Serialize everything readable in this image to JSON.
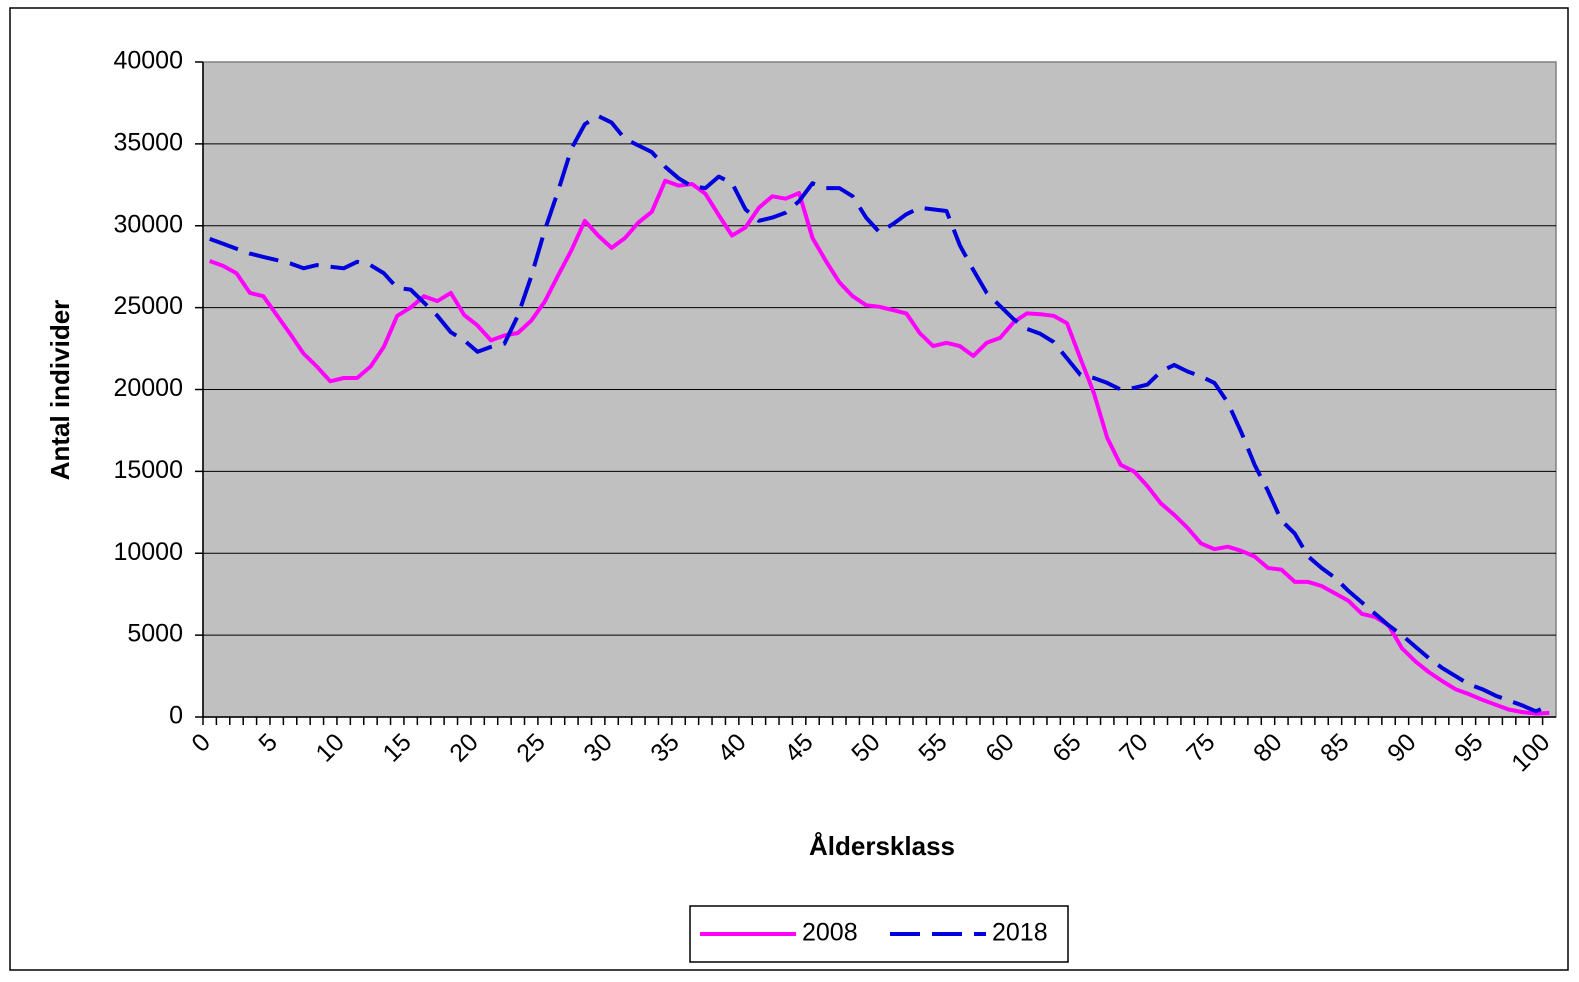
{
  "chart_data": {
    "type": "line",
    "x_label": "Åldersklass",
    "y_label": "Antal individer",
    "categories": [
      "0",
      null,
      null,
      null,
      null,
      "5",
      null,
      null,
      null,
      null,
      "10",
      null,
      null,
      null,
      null,
      "15",
      null,
      null,
      null,
      null,
      "20",
      null,
      null,
      null,
      null,
      "25",
      null,
      null,
      null,
      null,
      "30",
      null,
      null,
      null,
      null,
      "35",
      null,
      null,
      null,
      null,
      "40",
      null,
      null,
      null,
      null,
      "45",
      null,
      null,
      null,
      null,
      "50",
      null,
      null,
      null,
      null,
      "55",
      null,
      null,
      null,
      null,
      "60",
      null,
      null,
      null,
      null,
      "65",
      null,
      null,
      null,
      null,
      "70",
      null,
      null,
      null,
      null,
      "75",
      null,
      null,
      null,
      null,
      "80",
      null,
      null,
      null,
      null,
      "85",
      null,
      null,
      null,
      null,
      "90",
      null,
      null,
      null,
      null,
      "95",
      null,
      null,
      null,
      null,
      "100"
    ],
    "series": [
      {
        "name": "2008",
        "color": "#ff00ff",
        "dashed": false,
        "values": [
          27850,
          27550,
          27100,
          25900,
          25700,
          24550,
          23400,
          22200,
          21400,
          20500,
          20700,
          20700,
          21400,
          22600,
          24500,
          25000,
          25700,
          25400,
          25900,
          24550,
          23900,
          23000,
          23300,
          23450,
          24200,
          25350,
          26950,
          28500,
          30300,
          29400,
          28650,
          29250,
          30200,
          30850,
          32750,
          32450,
          32550,
          31950,
          30650,
          29400,
          29900,
          31100,
          31800,
          31650,
          32000,
          29250,
          27850,
          26550,
          25700,
          25150,
          25050,
          24850,
          24650,
          23450,
          22650,
          22850,
          22650,
          22050,
          22850,
          23150,
          24100,
          24650,
          24600,
          24500,
          24050,
          21900,
          19800,
          17050,
          15400,
          15000,
          14100,
          13050,
          12350,
          11550,
          10600,
          10250,
          10400,
          10150,
          9800,
          9100,
          9000,
          8250,
          8250,
          8000,
          7550,
          7100,
          6300,
          6100,
          5600,
          4200,
          3400,
          2750,
          2200,
          1700,
          1400,
          1050,
          750,
          450,
          300,
          200,
          250
        ]
      },
      {
        "name": "2018",
        "color": "#0000dd",
        "dashed": true,
        "values": [
          29200,
          28900,
          28600,
          28300,
          28100,
          27900,
          27700,
          27400,
          27600,
          27500,
          27400,
          27800,
          27600,
          27100,
          26200,
          26100,
          25300,
          24500,
          23500,
          23000,
          22300,
          22600,
          22800,
          24500,
          26900,
          29700,
          32100,
          34700,
          36200,
          36700,
          36300,
          35300,
          34900,
          34500,
          33600,
          32900,
          32400,
          32300,
          33000,
          32600,
          31000,
          30300,
          30500,
          30800,
          31500,
          32600,
          32300,
          32300,
          31800,
          30500,
          29600,
          30100,
          30700,
          31100,
          31000,
          30900,
          28800,
          27300,
          25900,
          25100,
          24300,
          23700,
          23400,
          22900,
          21900,
          20900,
          20700,
          20400,
          20000,
          20100,
          20300,
          21100,
          21500,
          21100,
          20800,
          20400,
          19200,
          17400,
          15400,
          13800,
          12000,
          11200,
          9800,
          9100,
          8500,
          7700,
          7000,
          6300,
          5600,
          5000,
          4300,
          3600,
          3000,
          2500,
          2000,
          1700,
          1300,
          1000,
          700,
          350,
          700
        ]
      }
    ],
    "ylim": [
      0,
      40000
    ],
    "yticks": [
      0,
      5000,
      10000,
      15000,
      20000,
      25000,
      30000,
      35000,
      40000
    ],
    "grid": true,
    "legend": "bottom"
  }
}
